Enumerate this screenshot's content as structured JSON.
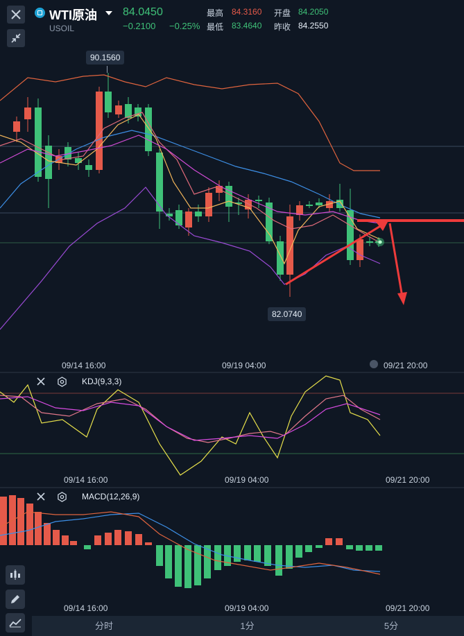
{
  "header": {
    "symbol": "WTI原油",
    "code": "USOIL",
    "last_price": "84.0450",
    "change": "−0.2100",
    "change_pct": "−0.25%",
    "high_label": "最高",
    "high": "84.3160",
    "open_label": "开盘",
    "open": "84.2050",
    "low_label": "最低",
    "low": "83.4640",
    "prev_close_label": "昨收",
    "prev_close": "84.2550"
  },
  "main_chart": {
    "max_tag": "90.1560",
    "min_tag": "82.0740",
    "dates": [
      "09/14 16:00",
      "09/19 04:00",
      "09/21 20:00"
    ]
  },
  "kdj": {
    "title": "KDJ(9,3,3)",
    "dates": [
      "09/14 16:00",
      "09/19 04:00",
      "09/21 20:00"
    ]
  },
  "macd": {
    "title": "MACD(12,26,9)",
    "dates": [
      "09/14 16:00",
      "09/19 04:00",
      "09/21 20:00"
    ]
  },
  "bottom_tabs": [
    "分时",
    "1分",
    "5分"
  ],
  "colors": {
    "up": "#e55a4a",
    "down": "#3fc178",
    "bg": "#0f1723"
  }
}
